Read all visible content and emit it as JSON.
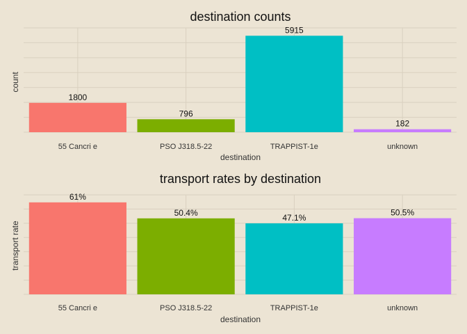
{
  "chart_data": [
    {
      "type": "bar",
      "title": "destination counts",
      "xlabel": "destination",
      "ylabel": "count",
      "categories": [
        "55 Cancri e",
        "PSO J318.5-22",
        "TRAPPIST-1e",
        "unknown"
      ],
      "values": [
        1800,
        796,
        5915,
        182
      ],
      "value_labels": [
        "1800",
        "796",
        "5915",
        "182"
      ],
      "colors": [
        "#f8766d",
        "#7cae00",
        "#00bfc4",
        "#c77cff"
      ],
      "ylim": [
        0,
        6400
      ],
      "grid": true,
      "legend": "none"
    },
    {
      "type": "bar",
      "title": "transport rates by destination",
      "xlabel": "destination",
      "ylabel": "transport rate",
      "categories": [
        "55 Cancri e",
        "PSO J318.5-22",
        "TRAPPIST-1e",
        "unknown"
      ],
      "values": [
        0.61,
        0.504,
        0.471,
        0.505
      ],
      "value_labels": [
        "61%",
        "50.4%",
        "47.1%",
        "50.5%"
      ],
      "colors": [
        "#f8766d",
        "#7cae00",
        "#00bfc4",
        "#c77cff"
      ],
      "ylim": [
        0,
        0.66
      ],
      "grid": true,
      "legend": "none"
    }
  ]
}
